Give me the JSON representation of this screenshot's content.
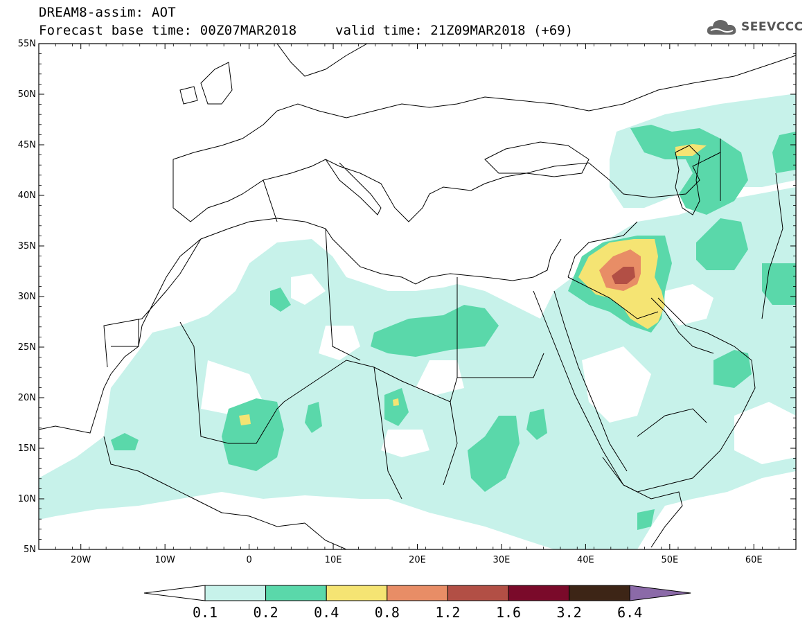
{
  "title": {
    "line1": "DREAM8-assim: AOT",
    "line2": "Forecast base time: 00Z07MAR2018",
    "valid": "valid time: 21Z09MAR2018 (+69)"
  },
  "logo": {
    "text": "SEEVCCC",
    "icon": "cloud-icon"
  },
  "map": {
    "lon_range": [
      -25,
      65
    ],
    "lat_range": [
      5,
      55
    ],
    "lat_ticks": [
      {
        "v": 55,
        "label": "55N"
      },
      {
        "v": 50,
        "label": "50N"
      },
      {
        "v": 45,
        "label": "45N"
      },
      {
        "v": 40,
        "label": "40N"
      },
      {
        "v": 35,
        "label": "35N"
      },
      {
        "v": 30,
        "label": "30N"
      },
      {
        "v": 25,
        "label": "25N"
      },
      {
        "v": 20,
        "label": "20N"
      },
      {
        "v": 15,
        "label": "15N"
      },
      {
        "v": 10,
        "label": "10N"
      },
      {
        "v": 5,
        "label": "5N"
      }
    ],
    "lon_ticks": [
      {
        "v": -20,
        "label": "20W"
      },
      {
        "v": -10,
        "label": "10W"
      },
      {
        "v": 0,
        "label": "0"
      },
      {
        "v": 10,
        "label": "10E"
      },
      {
        "v": 20,
        "label": "20E"
      },
      {
        "v": 30,
        "label": "30E"
      },
      {
        "v": 40,
        "label": "40E"
      },
      {
        "v": 50,
        "label": "50E"
      },
      {
        "v": 60,
        "label": "60E"
      }
    ],
    "colors": {
      "lvl_0_1": "#c7f2ea",
      "lvl_0_2": "#5ad8aa",
      "lvl_0_4": "#f5e473",
      "lvl_0_8": "#e88d66",
      "lvl_1_2": "#b24f45",
      "lvl_1_6": "#7a0a2a",
      "lvl_3_2": "#3d2516",
      "lvl_6_4": "#8b6aa8"
    }
  },
  "colorbar": {
    "labels": [
      "0.1",
      "0.2",
      "0.4",
      "0.8",
      "1.2",
      "1.6",
      "3.2",
      "6.4"
    ]
  }
}
